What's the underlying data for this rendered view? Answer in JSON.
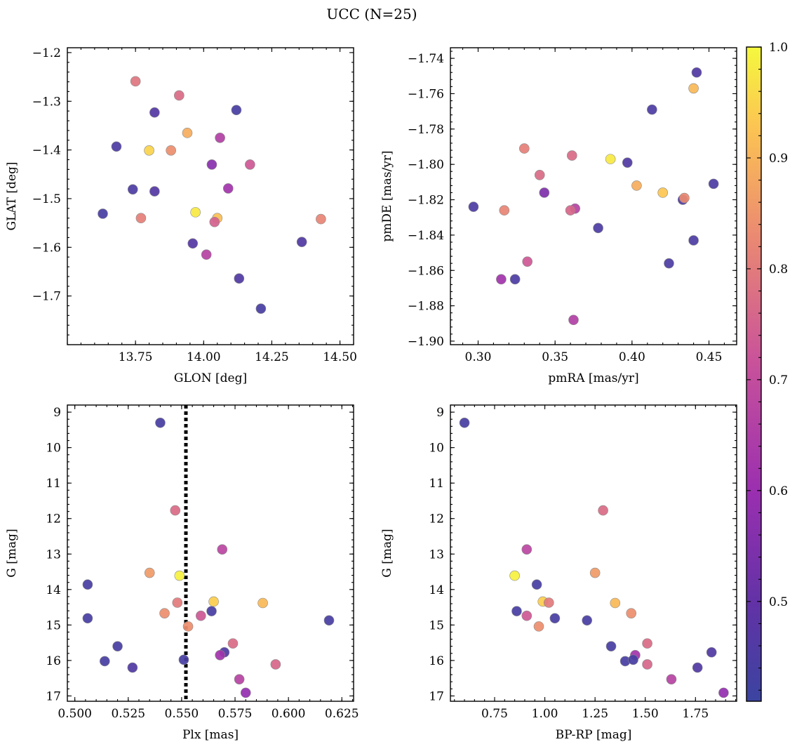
{
  "figure": {
    "title": "UCC (N=25)"
  },
  "colormap": {
    "name": "plasma",
    "range": [
      0.41,
      1.0
    ],
    "ticks": [
      0.5,
      0.6,
      0.7,
      0.8,
      0.9,
      1.0
    ],
    "tick_labels": [
      "0.5",
      "0.6",
      "0.7",
      "0.8",
      "0.9",
      "1.0"
    ]
  },
  "chart_data": [
    {
      "type": "scatter",
      "xlabel": "GLON [deg]",
      "ylabel": "GLAT [deg]",
      "xlim": [
        13.5,
        14.55
      ],
      "ylim": [
        -1.8,
        -1.19
      ],
      "xticks": [
        13.75,
        14.0,
        14.25,
        14.5
      ],
      "xtick_labels": [
        "13.75",
        "14.00",
        "14.25",
        "14.50"
      ],
      "yticks": [
        -1.7,
        -1.6,
        -1.5,
        -1.4,
        -1.3,
        -1.2
      ],
      "ytick_labels": [
        "−1.7",
        "−1.6",
        "−1.5",
        "−1.4",
        "−1.3",
        "−1.2"
      ],
      "x": [
        13.75,
        13.91,
        13.82,
        14.12,
        13.94,
        14.06,
        13.68,
        13.8,
        13.88,
        14.17,
        14.03,
        13.74,
        13.82,
        14.09,
        13.63,
        13.97,
        13.77,
        14.05,
        14.04,
        14.43,
        13.96,
        14.36,
        14.01,
        14.13,
        14.21
      ],
      "y": [
        -1.259,
        -1.288,
        -1.323,
        -1.318,
        -1.365,
        -1.375,
        -1.393,
        -1.401,
        -1.401,
        -1.43,
        -1.43,
        -1.481,
        -1.485,
        -1.479,
        -1.531,
        -1.528,
        -1.54,
        -1.54,
        -1.548,
        -1.542,
        -1.592,
        -1.589,
        -1.615,
        -1.664,
        -1.726
      ],
      "c": [
        0.79,
        0.77,
        0.47,
        0.44,
        0.89,
        0.66,
        0.45,
        0.95,
        0.84,
        0.73,
        0.57,
        0.45,
        0.47,
        0.62,
        0.44,
        0.98,
        0.81,
        0.92,
        0.75,
        0.82,
        0.47,
        0.46,
        0.67,
        0.46,
        0.44
      ]
    },
    {
      "type": "scatter",
      "xlabel": "pmRA [mas/yr]",
      "ylabel": "pmDE [mas/yr]",
      "xlim": [
        0.282,
        0.468
      ],
      "ylim": [
        -1.902,
        -1.734
      ],
      "xticks": [
        0.3,
        0.35,
        0.4,
        0.45
      ],
      "xtick_labels": [
        "0.30",
        "0.35",
        "0.40",
        "0.45"
      ],
      "yticks": [
        -1.9,
        -1.88,
        -1.86,
        -1.84,
        -1.82,
        -1.8,
        -1.78,
        -1.76,
        -1.74
      ],
      "ytick_labels": [
        "−1.90",
        "−1.88",
        "−1.86",
        "−1.84",
        "−1.82",
        "−1.80",
        "−1.78",
        "−1.76",
        "−1.74"
      ],
      "x": [
        0.442,
        0.44,
        0.413,
        0.33,
        0.361,
        0.386,
        0.397,
        0.34,
        0.403,
        0.343,
        0.42,
        0.433,
        0.434,
        0.453,
        0.297,
        0.317,
        0.363,
        0.36,
        0.378,
        0.44,
        0.424,
        0.332,
        0.315,
        0.324,
        0.362
      ],
      "y": [
        -1.748,
        -1.757,
        -1.769,
        -1.791,
        -1.795,
        -1.797,
        -1.799,
        -1.806,
        -1.812,
        -1.816,
        -1.816,
        -1.82,
        -1.819,
        -1.811,
        -1.824,
        -1.826,
        -1.825,
        -1.826,
        -1.836,
        -1.843,
        -1.856,
        -1.855,
        -1.865,
        -1.865,
        -1.888
      ],
      "c": [
        0.46,
        0.91,
        0.45,
        0.81,
        0.77,
        0.98,
        0.46,
        0.77,
        0.89,
        0.55,
        0.93,
        0.45,
        0.83,
        0.45,
        0.45,
        0.82,
        0.67,
        0.76,
        0.45,
        0.45,
        0.45,
        0.73,
        0.62,
        0.45,
        0.66
      ]
    },
    {
      "type": "scatter",
      "xlabel": "Plx [mas]",
      "ylabel": "G [mag]",
      "xlim": [
        0.4965,
        0.6305
      ],
      "ylim": [
        17.15,
        8.8
      ],
      "y_inverted": true,
      "vline_x": 0.552,
      "xticks": [
        0.5,
        0.525,
        0.55,
        0.575,
        0.6,
        0.625
      ],
      "xtick_labels": [
        "0.500",
        "0.525",
        "0.550",
        "0.575",
        "0.600",
        "0.625"
      ],
      "yticks": [
        9,
        10,
        11,
        12,
        13,
        14,
        15,
        16,
        17
      ],
      "ytick_labels": [
        "9",
        "10",
        "11",
        "12",
        "13",
        "14",
        "15",
        "16",
        "17"
      ],
      "x": [
        0.54,
        0.547,
        0.569,
        0.535,
        0.549,
        0.506,
        0.588,
        0.565,
        0.548,
        0.542,
        0.506,
        0.559,
        0.564,
        0.553,
        0.619,
        0.52,
        0.57,
        0.568,
        0.574,
        0.594,
        0.514,
        0.551,
        0.527,
        0.577,
        0.58
      ],
      "y": [
        9.3,
        11.77,
        12.87,
        13.53,
        13.61,
        13.86,
        14.38,
        14.34,
        14.37,
        14.67,
        14.81,
        14.74,
        14.61,
        15.04,
        14.87,
        15.6,
        15.77,
        15.85,
        15.52,
        16.11,
        16.02,
        15.98,
        16.2,
        16.53,
        16.91
      ],
      "c": [
        0.44,
        0.77,
        0.68,
        0.86,
        0.99,
        0.44,
        0.91,
        0.94,
        0.8,
        0.84,
        0.44,
        0.73,
        0.44,
        0.84,
        0.44,
        0.44,
        0.46,
        0.62,
        0.77,
        0.76,
        0.44,
        0.44,
        0.46,
        0.67,
        0.59
      ]
    },
    {
      "type": "scatter",
      "xlabel": "BP-RP [mag]",
      "ylabel": "G [mag]",
      "xlim": [
        0.53,
        1.955
      ],
      "ylim": [
        17.15,
        8.8
      ],
      "y_inverted": true,
      "xticks": [
        0.75,
        1.0,
        1.25,
        1.5,
        1.75
      ],
      "xtick_labels": [
        "0.75",
        "1.00",
        "1.25",
        "1.50",
        "1.75"
      ],
      "yticks": [
        9,
        10,
        11,
        12,
        13,
        14,
        15,
        16,
        17
      ],
      "ytick_labels": [
        "9",
        "10",
        "11",
        "12",
        "13",
        "14",
        "15",
        "16",
        "17"
      ],
      "x": [
        0.6,
        1.29,
        0.91,
        1.25,
        0.85,
        0.96,
        1.35,
        0.99,
        1.02,
        1.43,
        0.86,
        0.91,
        0.97,
        1.05,
        1.21,
        1.51,
        1.33,
        1.45,
        1.83,
        1.51,
        1.4,
        1.44,
        1.76,
        1.63,
        1.89
      ],
      "y": [
        9.3,
        11.77,
        12.87,
        13.53,
        13.61,
        13.86,
        14.38,
        14.34,
        14.37,
        14.67,
        14.61,
        14.74,
        15.04,
        14.81,
        14.87,
        15.52,
        15.6,
        15.85,
        15.77,
        16.11,
        16.02,
        15.98,
        16.2,
        16.53,
        16.91
      ],
      "c": [
        0.44,
        0.77,
        0.68,
        0.86,
        0.99,
        0.44,
        0.91,
        0.94,
        0.8,
        0.84,
        0.44,
        0.73,
        0.84,
        0.44,
        0.44,
        0.77,
        0.44,
        0.62,
        0.46,
        0.76,
        0.44,
        0.44,
        0.46,
        0.67,
        0.59
      ]
    }
  ]
}
